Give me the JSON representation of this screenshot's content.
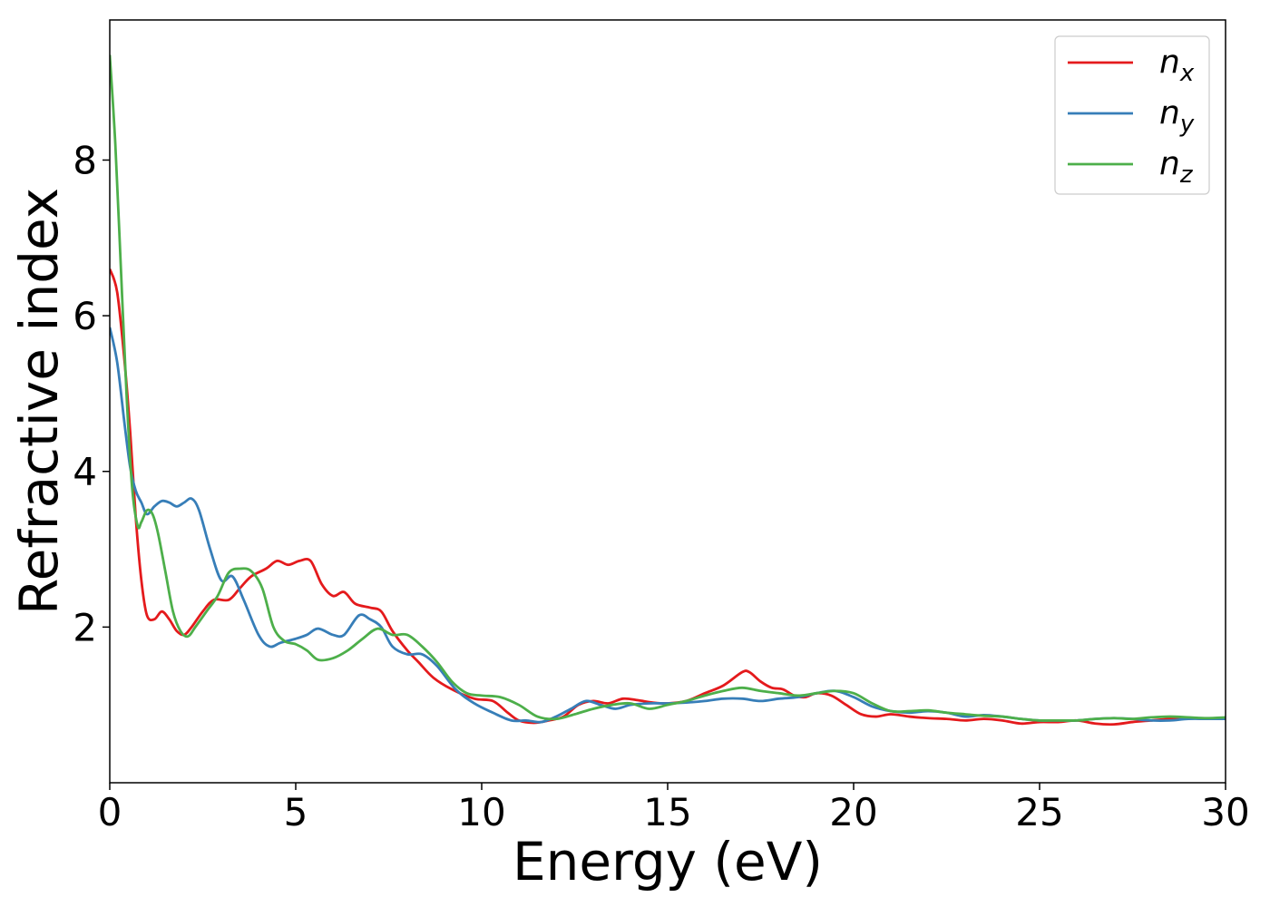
{
  "chart_data": {
    "type": "line",
    "title": "",
    "xlabel": "Energy (eV)",
    "ylabel": "Refractive index",
    "xlim": [
      0,
      30
    ],
    "ylim": [
      0,
      9.8
    ],
    "xticks": [
      0,
      5,
      10,
      15,
      20,
      25,
      30
    ],
    "xtick_labels": [
      "0",
      "5",
      "10",
      "15",
      "20",
      "25",
      "30"
    ],
    "yticks": [
      2,
      4,
      6,
      8
    ],
    "ytick_labels": [
      "2",
      "4",
      "6",
      "8"
    ],
    "grid": false,
    "legend_position": "top-right",
    "series": [
      {
        "name": "n",
        "subscript": "x",
        "color": "#e41a1c",
        "x": [
          0,
          0.2,
          0.4,
          0.55,
          0.7,
          0.85,
          1.0,
          1.2,
          1.4,
          1.6,
          1.8,
          2.0,
          2.2,
          2.5,
          2.8,
          3.2,
          3.5,
          3.8,
          4.2,
          4.5,
          4.8,
          5.1,
          5.4,
          5.7,
          6.0,
          6.3,
          6.6,
          7.0,
          7.3,
          7.6,
          8.0,
          8.3,
          8.7,
          9.2,
          9.8,
          10.3,
          10.7,
          11.0,
          11.4,
          11.8,
          12.2,
          12.6,
          13.0,
          13.4,
          13.8,
          14.2,
          14.6,
          15.0,
          15.5,
          16.0,
          16.5,
          17.0,
          17.2,
          17.5,
          17.8,
          18.1,
          18.4,
          18.7,
          19.0,
          19.4,
          19.8,
          20.2,
          20.6,
          21.0,
          21.5,
          22.0,
          22.5,
          23.0,
          23.5,
          24.0,
          24.5,
          25.0,
          25.5,
          26.0,
          26.5,
          27.0,
          27.5,
          28.0,
          28.5,
          29.0,
          29.5,
          30.0
        ],
        "y": [
          6.6,
          6.3,
          5.4,
          4.5,
          3.4,
          2.6,
          2.15,
          2.1,
          2.2,
          2.1,
          1.95,
          1.9,
          2.0,
          2.2,
          2.35,
          2.35,
          2.5,
          2.65,
          2.75,
          2.85,
          2.8,
          2.85,
          2.85,
          2.55,
          2.4,
          2.45,
          2.3,
          2.25,
          2.2,
          1.95,
          1.7,
          1.55,
          1.35,
          1.2,
          1.08,
          1.05,
          0.9,
          0.8,
          0.77,
          0.8,
          0.85,
          1.0,
          1.05,
          1.02,
          1.08,
          1.06,
          1.03,
          1.02,
          1.05,
          1.15,
          1.25,
          1.42,
          1.42,
          1.3,
          1.22,
          1.2,
          1.12,
          1.1,
          1.15,
          1.12,
          1.0,
          0.88,
          0.85,
          0.88,
          0.85,
          0.83,
          0.82,
          0.8,
          0.82,
          0.8,
          0.76,
          0.78,
          0.78,
          0.8,
          0.76,
          0.75,
          0.78,
          0.8,
          0.82,
          0.83,
          0.82,
          0.83
        ]
      },
      {
        "name": "n",
        "subscript": "y",
        "color": "#377eb8",
        "x": [
          0,
          0.2,
          0.4,
          0.55,
          0.7,
          0.85,
          1.0,
          1.2,
          1.4,
          1.6,
          1.8,
          2.0,
          2.2,
          2.4,
          2.7,
          3.0,
          3.3,
          3.6,
          4.0,
          4.3,
          4.6,
          5.0,
          5.3,
          5.6,
          6.0,
          6.3,
          6.7,
          7.0,
          7.3,
          7.6,
          8.0,
          8.4,
          8.8,
          9.3,
          9.8,
          10.3,
          10.8,
          11.2,
          11.6,
          12.0,
          12.4,
          12.8,
          13.2,
          13.6,
          14.0,
          14.5,
          15.0,
          15.5,
          16.0,
          16.5,
          17.0,
          17.5,
          18.0,
          18.5,
          19.0,
          19.5,
          20.0,
          20.5,
          21.0,
          21.5,
          22.0,
          22.5,
          23.0,
          23.5,
          24.0,
          24.5,
          25.0,
          25.5,
          26.0,
          26.5,
          27.0,
          27.5,
          28.0,
          28.5,
          29.0,
          29.5,
          30.0
        ],
        "y": [
          5.85,
          5.4,
          4.6,
          4.05,
          3.75,
          3.6,
          3.45,
          3.55,
          3.62,
          3.6,
          3.55,
          3.6,
          3.65,
          3.5,
          3.0,
          2.6,
          2.65,
          2.35,
          1.9,
          1.75,
          1.8,
          1.85,
          1.9,
          1.98,
          1.9,
          1.9,
          2.15,
          2.1,
          2.0,
          1.75,
          1.65,
          1.65,
          1.5,
          1.2,
          1.02,
          0.9,
          0.8,
          0.8,
          0.78,
          0.85,
          0.95,
          1.05,
          1.0,
          0.95,
          1.0,
          1.02,
          1.02,
          1.03,
          1.05,
          1.08,
          1.08,
          1.05,
          1.08,
          1.1,
          1.15,
          1.18,
          1.1,
          0.98,
          0.92,
          0.9,
          0.92,
          0.9,
          0.85,
          0.87,
          0.85,
          0.82,
          0.8,
          0.8,
          0.8,
          0.82,
          0.83,
          0.82,
          0.8,
          0.8,
          0.82,
          0.82,
          0.82
        ]
      },
      {
        "name": "n",
        "subscript": "z",
        "color": "#4daf4a",
        "x": [
          0,
          0.15,
          0.3,
          0.45,
          0.6,
          0.75,
          0.85,
          1.0,
          1.15,
          1.3,
          1.5,
          1.7,
          1.9,
          2.1,
          2.3,
          2.6,
          2.9,
          3.2,
          3.5,
          3.8,
          4.1,
          4.4,
          4.7,
          5.0,
          5.3,
          5.6,
          6.0,
          6.4,
          6.8,
          7.2,
          7.6,
          8.0,
          8.4,
          8.8,
          9.2,
          9.6,
          10.0,
          10.5,
          11.0,
          11.5,
          12.0,
          12.5,
          13.0,
          13.5,
          14.0,
          14.5,
          15.0,
          15.5,
          16.0,
          16.5,
          17.0,
          17.5,
          18.0,
          18.5,
          19.0,
          19.5,
          20.0,
          20.5,
          21.0,
          21.5,
          22.0,
          22.5,
          23.0,
          23.5,
          24.0,
          24.5,
          25.0,
          25.5,
          26.0,
          26.5,
          27.0,
          27.5,
          28.0,
          28.5,
          29.0,
          29.5,
          30.0
        ],
        "y": [
          9.35,
          8.2,
          6.6,
          5.0,
          3.8,
          3.3,
          3.35,
          3.5,
          3.45,
          3.2,
          2.7,
          2.2,
          1.95,
          1.88,
          2.0,
          2.2,
          2.4,
          2.7,
          2.75,
          2.72,
          2.5,
          2.0,
          1.82,
          1.78,
          1.7,
          1.58,
          1.6,
          1.7,
          1.85,
          1.98,
          1.9,
          1.9,
          1.75,
          1.55,
          1.3,
          1.15,
          1.12,
          1.1,
          1.0,
          0.85,
          0.82,
          0.88,
          0.95,
          1.0,
          1.02,
          0.95,
          1.0,
          1.05,
          1.12,
          1.18,
          1.22,
          1.18,
          1.15,
          1.12,
          1.15,
          1.18,
          1.15,
          1.02,
          0.92,
          0.92,
          0.93,
          0.9,
          0.88,
          0.86,
          0.85,
          0.82,
          0.8,
          0.8,
          0.8,
          0.82,
          0.83,
          0.82,
          0.84,
          0.85,
          0.84,
          0.83,
          0.84
        ]
      }
    ]
  }
}
